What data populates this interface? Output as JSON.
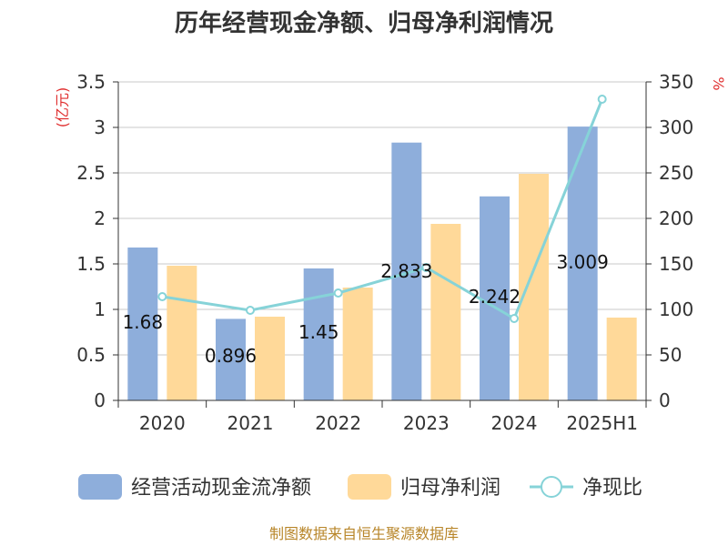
{
  "chart_data": {
    "type": "bar",
    "title": "历年经营现金净额、归母净利润情况",
    "categories": [
      "2020",
      "2021",
      "2022",
      "2023",
      "2024",
      "2025H1"
    ],
    "left_axis": {
      "unit_label": "(亿元)",
      "ylim": [
        0,
        3.5
      ],
      "ticks": [
        "0",
        "0.5",
        "1",
        "1.5",
        "2",
        "2.5",
        "3",
        "3.5"
      ]
    },
    "right_axis": {
      "unit_label": "%",
      "ylim": [
        0,
        350
      ],
      "ticks": [
        "0",
        "50",
        "100",
        "150",
        "200",
        "250",
        "300",
        "350"
      ]
    },
    "series": [
      {
        "name": "经营活动现金流净额",
        "type": "bar",
        "axis": "left",
        "color": "#8eaedb",
        "values": [
          1.68,
          0.896,
          1.45,
          2.833,
          2.242,
          3.009
        ],
        "labels": [
          "1.68",
          "0.896",
          "1.45",
          "2.833",
          "2.242",
          "3.009"
        ]
      },
      {
        "name": "归母净利润",
        "type": "bar",
        "axis": "left",
        "color": "#ffd999",
        "values": [
          1.48,
          0.92,
          1.24,
          1.94,
          2.49,
          0.91
        ]
      },
      {
        "name": "净现比",
        "type": "line",
        "axis": "right",
        "color": "#86d3d8",
        "values": [
          114,
          99,
          118,
          146,
          90,
          331
        ]
      }
    ],
    "grid": true,
    "legend_position": "bottom",
    "source_note": "制图数据来自恒生聚源数据库"
  }
}
